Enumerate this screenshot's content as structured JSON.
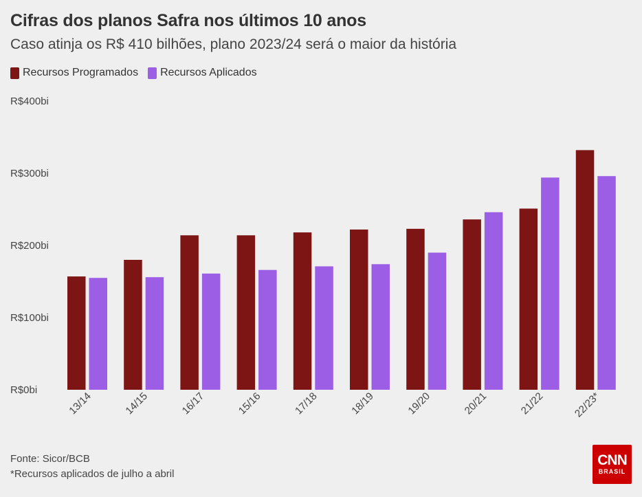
{
  "title": "Cifras dos planos Safra nos últimos 10 anos",
  "subtitle": "Caso atinja os R$ 410 bilhões, plano 2023/24 será o maior da história",
  "colors": {
    "programados": "#7d1515",
    "aplicados": "#9d5ee6"
  },
  "footer": {
    "source": "Fonte: Sicor/BCB",
    "note": "*Recursos aplicados de julho a abril"
  },
  "logo": {
    "main": "CNN",
    "sub": "BRASIL"
  },
  "chart_data": {
    "type": "bar",
    "title": "Cifras dos planos Safra nos últimos 10 anos",
    "subtitle": "Caso atinja os R$ 410 bilhões, plano 2023/24 será o maior da história",
    "categories": [
      "13/14",
      "14/15",
      "16/17",
      "15/16",
      "17/18",
      "18/19",
      "19/20",
      "20/21",
      "21/22",
      "22/23*"
    ],
    "series": [
      {
        "name": "Recursos Programados",
        "color": "#7d1515",
        "values": [
          157,
          180,
          214,
          214,
          218,
          222,
          223,
          236,
          251,
          332
        ]
      },
      {
        "name": "Recursos Aplicados",
        "color": "#9d5ee6",
        "values": [
          155,
          156,
          161,
          166,
          171,
          174,
          190,
          246,
          294,
          296
        ]
      }
    ],
    "ylim": [
      0,
      400
    ],
    "yticks": [
      0,
      100,
      200,
      300,
      400
    ],
    "ytick_labels": [
      "R$0bi",
      "R$100bi",
      "R$200bi",
      "R$300bi",
      "R$400bi"
    ],
    "legend": "top-left",
    "grid": false
  }
}
